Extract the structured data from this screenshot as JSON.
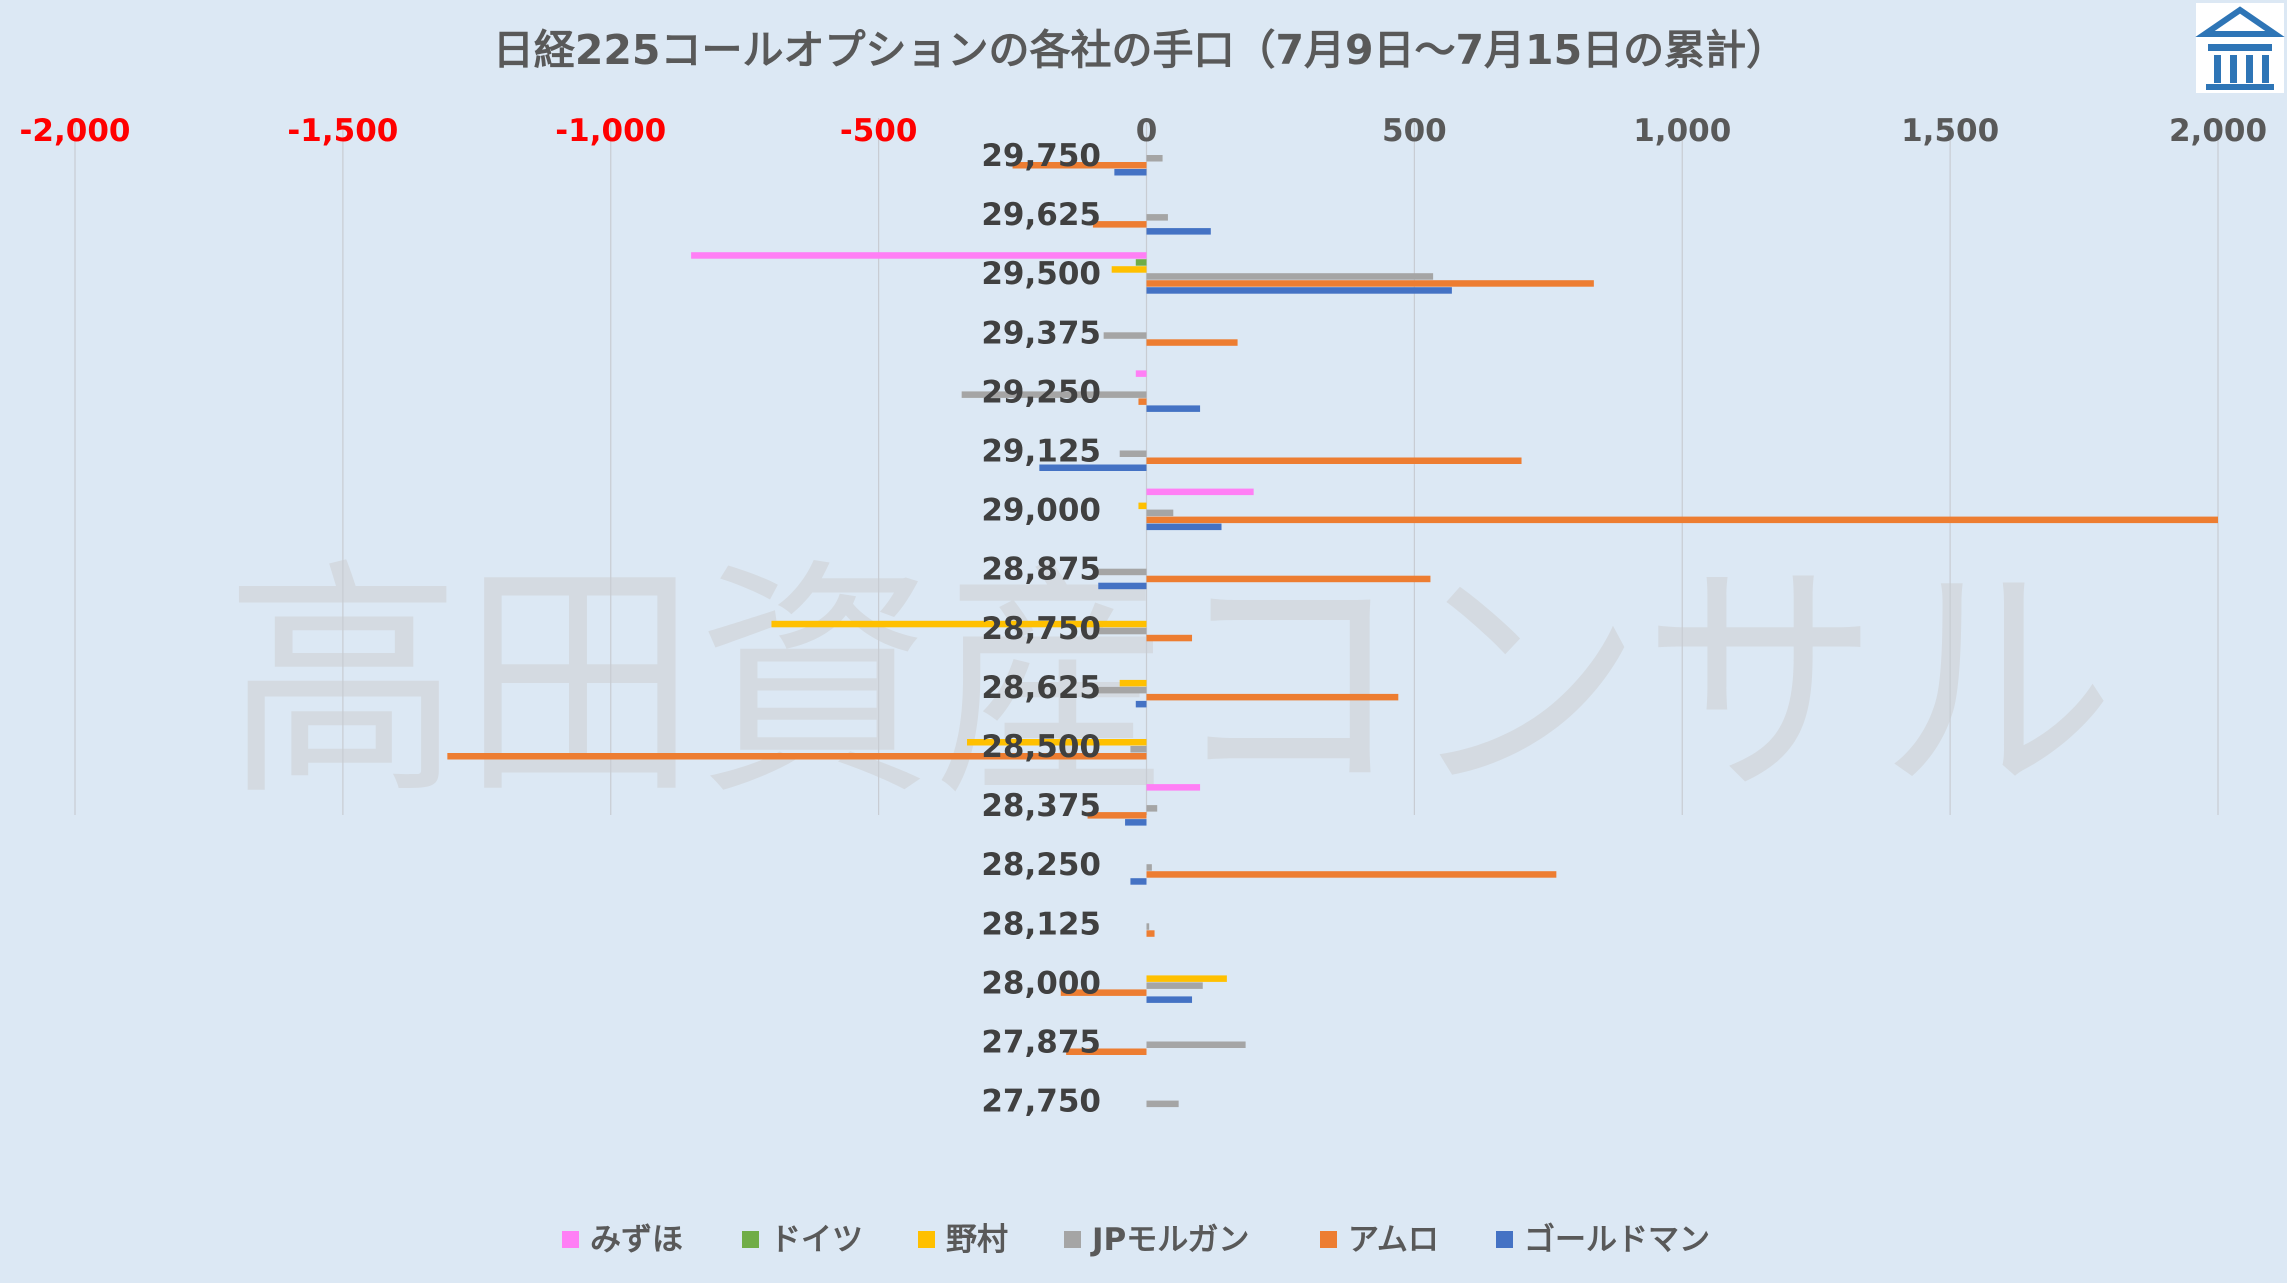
{
  "watermark": "高田資産コンサル",
  "colors": {
    "negative_tick": "#ff0000",
    "positive_tick": "#595959",
    "grid": "#c8ccd2",
    "logo": "#2e75b6"
  },
  "chart_data": {
    "type": "bar",
    "orientation": "horizontal",
    "title": "日経225コールオプションの各社の手口（7月9日～7月15日の累計）",
    "xlim": [
      -2000,
      2000
    ],
    "x_ticks": [
      -2000,
      -1500,
      -1000,
      -500,
      0,
      500,
      1000,
      1500,
      2000
    ],
    "x_tick_labels": [
      "-2,000",
      "-1,500",
      "-1,000",
      "-500",
      "0",
      "500",
      "1,000",
      "1,500",
      "2,000"
    ],
    "x_axis_position": "top",
    "grid": true,
    "legend_position": "bottom",
    "categories": [
      "29,750",
      "29,625",
      "29,500",
      "29,375",
      "29,250",
      "29,125",
      "29,000",
      "28,875",
      "28,750",
      "28,625",
      "28,500",
      "28,375",
      "28,250",
      "28,125",
      "28,000",
      "27,875",
      "27,750"
    ],
    "series": [
      {
        "name": "みずほ",
        "color": "#ff7ff5",
        "values": [
          0,
          0,
          -850,
          0,
          -20,
          0,
          200,
          0,
          0,
          0,
          0,
          100,
          0,
          0,
          0,
          0,
          0
        ]
      },
      {
        "name": "ドイツ",
        "color": "#70ad47",
        "values": [
          0,
          0,
          -20,
          0,
          0,
          0,
          0,
          0,
          0,
          0,
          0,
          0,
          0,
          0,
          0,
          0,
          0
        ]
      },
      {
        "name": "野村",
        "color": "#ffc000",
        "values": [
          0,
          0,
          -65,
          0,
          0,
          0,
          -15,
          0,
          -700,
          -50,
          -335,
          0,
          0,
          0,
          150,
          0,
          0
        ]
      },
      {
        "name": "JPモルガン",
        "color": "#a5a5a5",
        "values": [
          30,
          40,
          535,
          -80,
          -345,
          -50,
          50,
          -90,
          -90,
          -90,
          -30,
          20,
          10,
          5,
          105,
          185,
          60
        ]
      },
      {
        "name": "アムロ",
        "color": "#ed7d31",
        "values": [
          -250,
          -100,
          835,
          170,
          -15,
          700,
          2000,
          530,
          85,
          470,
          -1305,
          -110,
          765,
          15,
          -160,
          -150,
          0
        ]
      },
      {
        "name": "ゴールドマン",
        "color": "#4472c4",
        "values": [
          -60,
          120,
          570,
          0,
          100,
          -200,
          140,
          -90,
          0,
          -20,
          0,
          -40,
          -30,
          0,
          85,
          0,
          0
        ]
      }
    ]
  }
}
